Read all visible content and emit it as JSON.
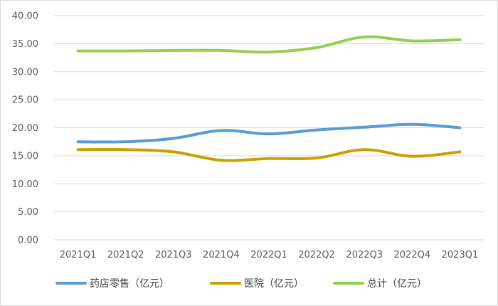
{
  "chart_data": {
    "type": "line",
    "title": "",
    "xlabel": "",
    "ylabel": "",
    "categories": [
      "2021Q1",
      "2021Q2",
      "2021Q3",
      "2021Q4",
      "2022Q1",
      "2022Q2",
      "2022Q3",
      "2022Q4",
      "2023Q1"
    ],
    "y_tick_labels": [
      "0.00",
      "5.00",
      "10.00",
      "15.00",
      "20.00",
      "25.00",
      "30.00",
      "35.00",
      "40.00"
    ],
    "ylim": [
      0,
      40
    ],
    "grid": true,
    "legend_position": "bottom",
    "series": [
      {
        "name": "药店零售（亿元）",
        "color": "#5b9bd5",
        "values": [
          17.5,
          17.5,
          18.1,
          19.5,
          18.9,
          19.6,
          20.1,
          20.6,
          20.0
        ]
      },
      {
        "name": "医院（亿元）",
        "color": "#c9a000",
        "values": [
          16.1,
          16.1,
          15.7,
          14.2,
          14.5,
          14.6,
          16.1,
          14.9,
          15.7
        ]
      },
      {
        "name": "总计（亿元）",
        "color": "#92d050",
        "values": [
          33.7,
          33.7,
          33.8,
          33.8,
          33.5,
          34.3,
          36.2,
          35.5,
          35.7
        ]
      }
    ]
  }
}
